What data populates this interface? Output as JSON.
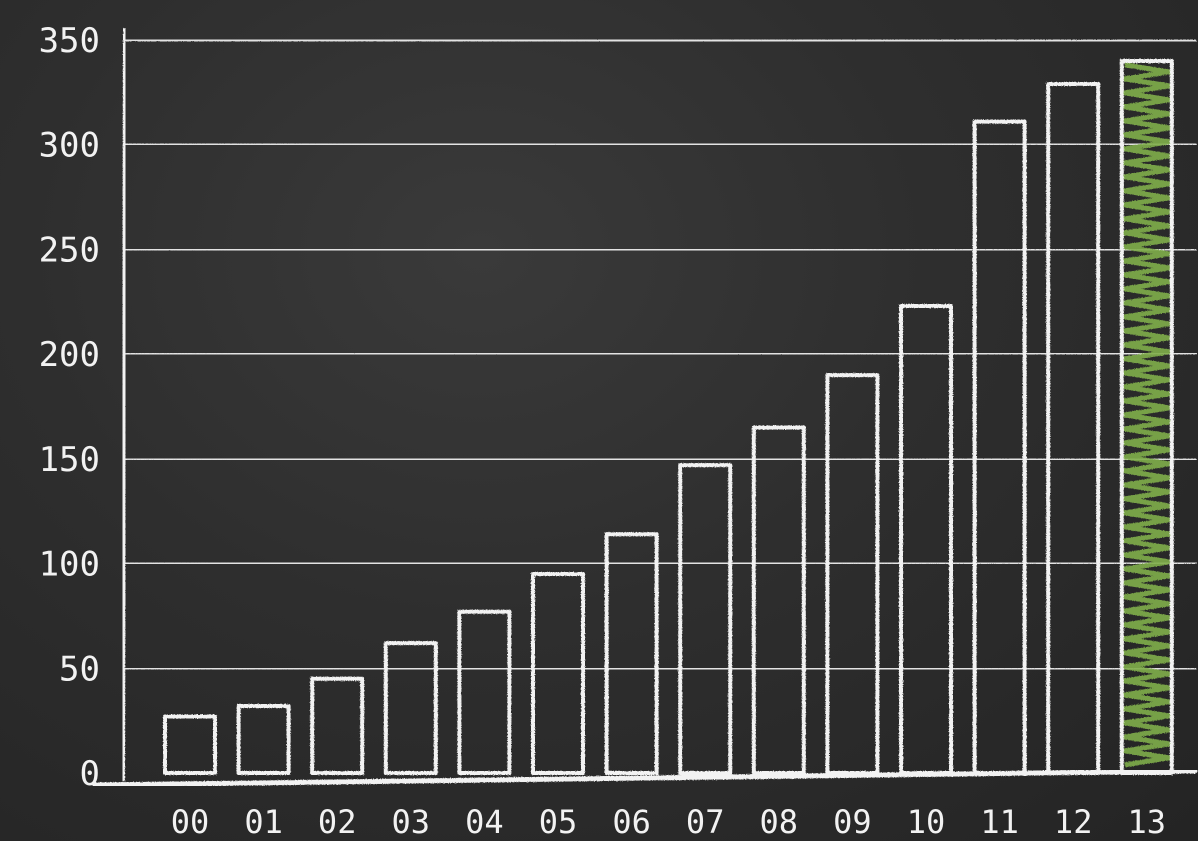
{
  "chart_data": {
    "type": "bar",
    "categories": [
      "00",
      "01",
      "02",
      "03",
      "04",
      "05",
      "06",
      "07",
      "08",
      "09",
      "10",
      "11",
      "12",
      "13"
    ],
    "values": [
      27,
      32,
      45,
      62,
      77,
      95,
      114,
      147,
      165,
      190,
      223,
      311,
      329,
      340
    ],
    "title": "",
    "xlabel": "",
    "ylabel": "",
    "ylim": [
      0,
      350
    ],
    "yticks": [
      "0",
      "50",
      "100",
      "150",
      "200",
      "250",
      "300",
      "350"
    ],
    "grid": true,
    "highlight_index": 13,
    "colors": {
      "chalk": "#f2f2f2",
      "highlight": "#7fae4b",
      "board": "#2e2e2e"
    }
  }
}
